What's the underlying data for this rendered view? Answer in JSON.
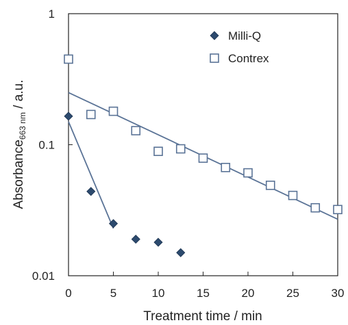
{
  "chart_data": {
    "type": "scatter",
    "title": "",
    "xlabel": "Treatment time / min",
    "ylabel": {
      "main": "Absorbance",
      "subscript": "663 nm",
      "suffix": " / a.u."
    },
    "xlim": [
      0,
      30
    ],
    "ylim": [
      0.01,
      1
    ],
    "y_scale": "log",
    "x_ticks": [
      0,
      5,
      10,
      15,
      20,
      25,
      30
    ],
    "x_tick_labels": [
      "0",
      "5",
      "10",
      "15",
      "20",
      "25",
      "30"
    ],
    "y_ticks": [
      0.01,
      0.1,
      1
    ],
    "y_tick_labels": [
      "0.01",
      "0.1",
      "1"
    ],
    "grid": false,
    "legend_position": "top-right",
    "series": [
      {
        "name": "Milli-Q",
        "marker": "diamond",
        "color": "#2c4a6e",
        "x": [
          0,
          2.5,
          5,
          7.5,
          10,
          12.5
        ],
        "y": [
          0.165,
          0.044,
          0.025,
          0.019,
          0.018,
          0.015
        ]
      },
      {
        "name": "Contrex",
        "marker": "square-open",
        "color": "#5a7396",
        "x": [
          0,
          2.5,
          5,
          7.5,
          10,
          12.5,
          15,
          17.5,
          20,
          22.5,
          25,
          27.5,
          30
        ],
        "y": [
          0.45,
          0.17,
          0.18,
          0.128,
          0.089,
          0.093,
          0.079,
          0.067,
          0.061,
          0.049,
          0.041,
          0.033,
          0.032
        ]
      }
    ],
    "fit_lines": [
      {
        "series": "Milli-Q",
        "color": "#5a7396",
        "x": [
          0,
          5
        ],
        "y": [
          0.15,
          0.023
        ]
      },
      {
        "series": "Contrex",
        "color": "#5a7396",
        "x": [
          0,
          30
        ],
        "y": [
          0.25,
          0.027
        ]
      }
    ]
  }
}
